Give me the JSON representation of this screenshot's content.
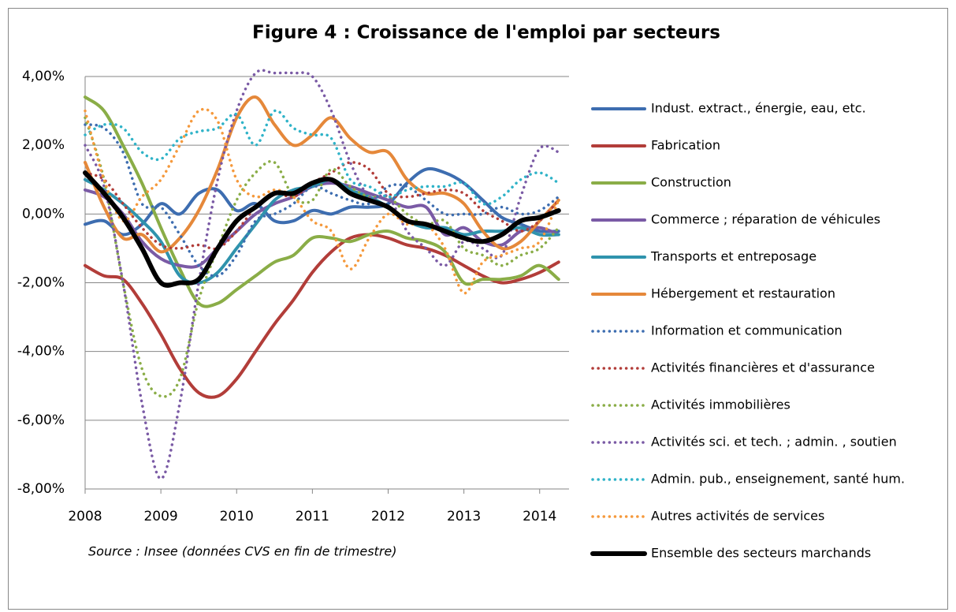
{
  "chart_data": {
    "type": "line",
    "title": "Figure 4 : Croissance de l'emploi par secteurs",
    "annotation": "Source : Insee (données CVS en fin de trimestre)",
    "x": [
      2008,
      2008.25,
      2008.5,
      2008.75,
      2009,
      2009.25,
      2009.5,
      2009.75,
      2010,
      2010.25,
      2010.5,
      2010.75,
      2011,
      2011.25,
      2011.5,
      2011.75,
      2012,
      2012.25,
      2012.5,
      2012.75,
      2013,
      2013.25,
      2013.5,
      2013.75,
      2014,
      2014.25
    ],
    "xlim": [
      2008,
      2014.45
    ],
    "xticks": [
      2008,
      2009,
      2010,
      2011,
      2012,
      2013,
      2014
    ],
    "ylim": [
      -8,
      4
    ],
    "yticks": [
      {
        "value": -8,
        "label": "-8,00%"
      },
      {
        "value": -6,
        "label": "-6,00%"
      },
      {
        "value": -4,
        "label": "-4,00%"
      },
      {
        "value": -2,
        "label": "-2,00%"
      },
      {
        "value": 0,
        "label": "0,00%"
      },
      {
        "value": 2,
        "label": "2,00%"
      },
      {
        "value": 4,
        "label": "4,00%"
      }
    ],
    "grid": true,
    "legend": "right",
    "series": [
      {
        "name": "Indust. extract., énergie, eau, etc.",
        "color": "#3d6db0",
        "style": "solid",
        "values": [
          -0.3,
          -0.2,
          -0.6,
          -0.3,
          0.3,
          0.0,
          0.6,
          0.7,
          0.1,
          0.3,
          -0.2,
          -0.2,
          0.1,
          0.0,
          0.2,
          0.2,
          0.3,
          0.9,
          1.3,
          1.2,
          0.9,
          0.4,
          -0.1,
          -0.3,
          -0.5,
          -0.5
        ]
      },
      {
        "name": "Fabrication",
        "color": "#b23d39",
        "style": "solid",
        "values": [
          -1.5,
          -1.8,
          -1.9,
          -2.6,
          -3.5,
          -4.5,
          -5.2,
          -5.3,
          -4.8,
          -4.0,
          -3.2,
          -2.5,
          -1.7,
          -1.1,
          -0.7,
          -0.6,
          -0.7,
          -0.9,
          -1.0,
          -1.2,
          -1.5,
          -1.8,
          -2.0,
          -1.9,
          -1.7,
          -1.4
        ]
      },
      {
        "name": "Construction",
        "color": "#8aad47",
        "style": "solid",
        "values": [
          3.4,
          3.0,
          2.0,
          0.9,
          -0.4,
          -1.6,
          -2.6,
          -2.6,
          -2.2,
          -1.8,
          -1.4,
          -1.2,
          -0.7,
          -0.7,
          -0.8,
          -0.6,
          -0.5,
          -0.7,
          -0.8,
          -1.1,
          -2.0,
          -1.9,
          -1.9,
          -1.8,
          -1.5,
          -1.9
        ]
      },
      {
        "name": "Commerce ; réparation de véhicules",
        "color": "#7a5aa5",
        "style": "solid",
        "values": [
          0.7,
          0.5,
          0.0,
          -0.8,
          -1.3,
          -1.5,
          -1.5,
          -1.0,
          -0.5,
          0.0,
          0.3,
          0.5,
          0.8,
          0.9,
          0.8,
          0.6,
          0.4,
          0.2,
          0.2,
          -0.6,
          -0.4,
          -0.8,
          -0.9,
          -0.5,
          -0.4,
          -0.6
        ]
      },
      {
        "name": "Transports et entreposage",
        "color": "#2f93ad",
        "style": "solid",
        "values": [
          1.0,
          0.7,
          0.3,
          -0.2,
          -0.8,
          -1.8,
          -2.0,
          -1.7,
          -1.0,
          -0.3,
          0.4,
          0.7,
          0.8,
          1.0,
          0.7,
          0.5,
          0.2,
          -0.2,
          -0.4,
          -0.4,
          -0.6,
          -0.5,
          -0.5,
          -0.4,
          -0.6,
          -0.6
        ]
      },
      {
        "name": "Hébergement et restauration",
        "color": "#e5883a",
        "style": "solid",
        "values": [
          1.5,
          0.2,
          -0.7,
          -0.6,
          -1.1,
          -0.7,
          0.1,
          1.3,
          2.8,
          3.4,
          2.6,
          2.0,
          2.3,
          2.8,
          2.2,
          1.8,
          1.8,
          1.0,
          0.6,
          0.6,
          0.3,
          -0.5,
          -1.0,
          -0.8,
          -0.2,
          0.4
        ]
      },
      {
        "name": "Information et communication",
        "color": "#3d6db0",
        "style": "dotted",
        "values": [
          2.6,
          2.5,
          1.8,
          0.3,
          0.2,
          -0.6,
          -1.5,
          -1.8,
          -1.2,
          -0.2,
          0.0,
          0.3,
          0.8,
          0.6,
          0.4,
          0.3,
          0.8,
          0.8,
          0.4,
          0.0,
          0.0,
          0.0,
          0.2,
          0.0,
          0.1,
          0.5
        ]
      },
      {
        "name": "Activités financières et d'assurance",
        "color": "#b23d39",
        "style": "dotted",
        "values": [
          1.2,
          1.0,
          0.3,
          -0.4,
          -0.9,
          -1.0,
          -0.9,
          -1.0,
          -0.5,
          0.2,
          0.6,
          0.5,
          0.9,
          1.2,
          1.5,
          1.3,
          0.6,
          0.5,
          0.6,
          0.7,
          0.6,
          0.1,
          -0.2,
          -0.5,
          -0.2,
          0.4
        ]
      },
      {
        "name": "Activités immobilières",
        "color": "#8aad47",
        "style": "dotted",
        "values": [
          2.8,
          1.0,
          -2.0,
          -4.5,
          -5.3,
          -4.8,
          -2.5,
          -1.0,
          0.4,
          1.2,
          1.5,
          0.5,
          0.4,
          1.3,
          0.8,
          0.5,
          0.5,
          0.0,
          -0.3,
          -0.2,
          -1.0,
          -1.2,
          -1.5,
          -1.2,
          -1.0,
          -0.4
        ]
      },
      {
        "name": "Activités sci. et tech. ; admin. , soutien",
        "color": "#7a5aa5",
        "style": "dotted",
        "values": [
          2.0,
          0.8,
          -2.0,
          -5.5,
          -7.7,
          -5.5,
          -2.0,
          1.0,
          3.0,
          4.1,
          4.1,
          4.1,
          4.0,
          3.0,
          1.5,
          0.5,
          0.5,
          -0.5,
          -1.0,
          -1.5,
          -0.8,
          -1.0,
          -1.2,
          0.5,
          1.9,
          1.8
        ]
      },
      {
        "name": "Admin. pub., enseignement, santé hum.",
        "color": "#2fb3c8",
        "style": "dotted",
        "values": [
          2.3,
          2.6,
          2.5,
          1.8,
          1.6,
          2.2,
          2.4,
          2.5,
          2.9,
          2.0,
          3.0,
          2.5,
          2.3,
          2.2,
          1.0,
          0.8,
          0.5,
          0.7,
          0.8,
          0.8,
          0.9,
          0.3,
          0.5,
          1.0,
          1.2,
          0.9
        ]
      },
      {
        "name": "Autres activités de services",
        "color": "#f5993c",
        "style": "dotted",
        "values": [
          3.0,
          1.0,
          -0.2,
          0.5,
          1.0,
          2.0,
          3.0,
          2.7,
          1.0,
          0.5,
          0.7,
          0.5,
          -0.2,
          -0.5,
          -1.6,
          -0.7,
          0.0,
          -0.3,
          -0.3,
          -1.0,
          -2.3,
          -1.4,
          -1.2,
          -1.0,
          -0.8,
          0.4
        ]
      },
      {
        "name": "Ensemble des secteurs marchands",
        "color": "#000000",
        "style": "thick",
        "values": [
          1.2,
          0.6,
          -0.1,
          -1.0,
          -2.0,
          -2.0,
          -1.9,
          -1.0,
          -0.2,
          0.2,
          0.6,
          0.6,
          0.9,
          1.0,
          0.6,
          0.4,
          0.2,
          -0.2,
          -0.3,
          -0.5,
          -0.7,
          -0.8,
          -0.6,
          -0.2,
          -0.1,
          0.1
        ]
      }
    ]
  }
}
